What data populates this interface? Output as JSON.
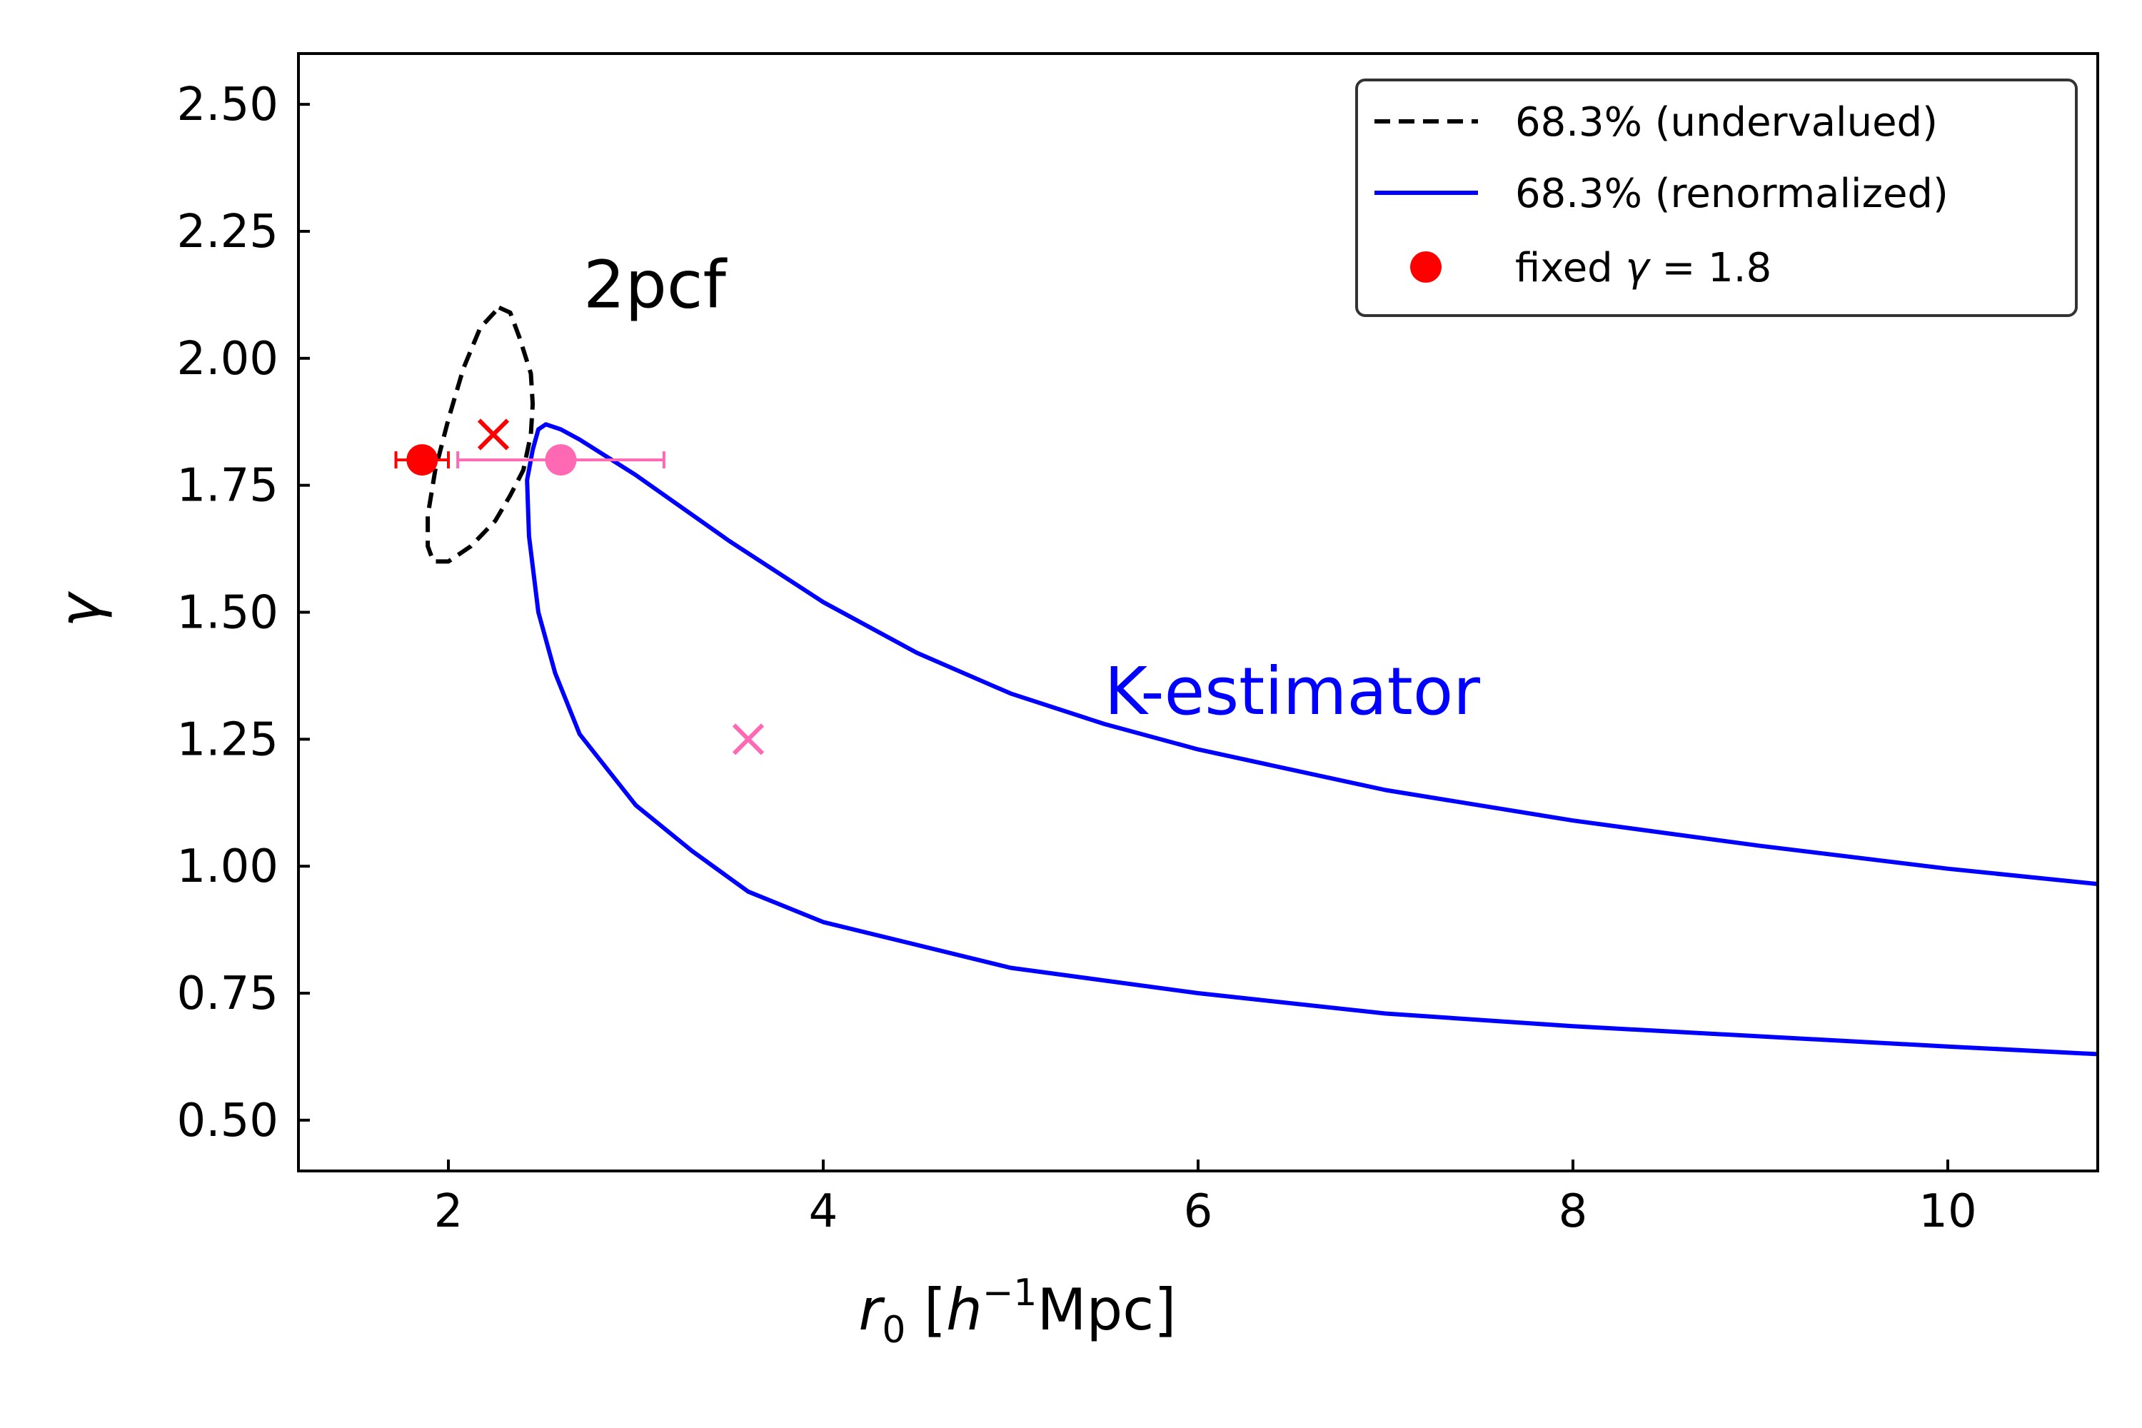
{
  "chart_data": {
    "type": "scatter",
    "title": "",
    "xlabel_parts": {
      "var": "r",
      "sub": "0",
      "unit_open": " [",
      "h": "h",
      "exp": "−1",
      "unit": "Mpc]"
    },
    "ylabel": "γ",
    "xlim": [
      1.2,
      10.8
    ],
    "ylim": [
      0.4,
      2.6
    ],
    "x_ticks": [
      2,
      4,
      6,
      8,
      10
    ],
    "x_tick_labels": [
      "2",
      "4",
      "6",
      "8",
      "10"
    ],
    "y_ticks": [
      0.5,
      0.75,
      1.0,
      1.25,
      1.5,
      1.75,
      2.0,
      2.25,
      2.5
    ],
    "y_tick_labels": [
      "0.50",
      "0.75",
      "1.00",
      "1.25",
      "1.50",
      "1.75",
      "2.00",
      "2.25",
      "2.50"
    ],
    "grid": false,
    "legend": {
      "placement": "top-right",
      "entries": [
        {
          "label": "68.3% (undervalued)",
          "style": "dashed-line",
          "color": "#000000"
        },
        {
          "label": "68.3% (renormalized)",
          "style": "solid-line",
          "color": "#0000ff"
        },
        {
          "label_prefix": "fixed ",
          "label_symbol": "γ",
          "label_suffix": " = 1.8",
          "style": "marker-circle",
          "color": "#ff0000"
        }
      ]
    },
    "annotations": [
      {
        "text": "2pcf",
        "x": 2.72,
        "y": 2.1,
        "color": "#000000"
      },
      {
        "text": "K-estimator",
        "x": 5.5,
        "y": 1.3,
        "color": "#0000ff"
      }
    ],
    "series": [
      {
        "name": "68.3% (undervalued)",
        "type": "contour",
        "line": "dashed",
        "color": "#000000",
        "points": [
          [
            2.27,
            2.1
          ],
          [
            2.33,
            2.09
          ],
          [
            2.38,
            2.04
          ],
          [
            2.44,
            1.97
          ],
          [
            2.45,
            1.91
          ],
          [
            2.44,
            1.85
          ],
          [
            2.4,
            1.78
          ],
          [
            2.33,
            1.73
          ],
          [
            2.25,
            1.68
          ],
          [
            2.12,
            1.63
          ],
          [
            2.0,
            1.6
          ],
          [
            1.92,
            1.6
          ],
          [
            1.89,
            1.63
          ],
          [
            1.89,
            1.69
          ],
          [
            1.93,
            1.78
          ],
          [
            2.0,
            1.88
          ],
          [
            2.08,
            1.98
          ],
          [
            2.17,
            2.06
          ],
          [
            2.27,
            2.1
          ]
        ]
      },
      {
        "name": "68.3% (renormalized)",
        "type": "contour",
        "line": "solid",
        "color": "#0000ff",
        "upper": [
          [
            2.52,
            1.87
          ],
          [
            2.6,
            1.86
          ],
          [
            2.7,
            1.84
          ],
          [
            3.0,
            1.77
          ],
          [
            3.5,
            1.64
          ],
          [
            4.0,
            1.52
          ],
          [
            4.5,
            1.42
          ],
          [
            5.0,
            1.34
          ],
          [
            5.5,
            1.28
          ],
          [
            6.0,
            1.23
          ],
          [
            7.0,
            1.15
          ],
          [
            8.0,
            1.09
          ],
          [
            9.0,
            1.04
          ],
          [
            10.0,
            0.995
          ],
          [
            10.8,
            0.965
          ]
        ],
        "lower": [
          [
            2.52,
            1.87
          ],
          [
            2.48,
            1.86
          ],
          [
            2.45,
            1.82
          ],
          [
            2.42,
            1.76
          ],
          [
            2.43,
            1.65
          ],
          [
            2.48,
            1.5
          ],
          [
            2.57,
            1.38
          ],
          [
            2.7,
            1.26
          ],
          [
            3.0,
            1.12
          ],
          [
            3.3,
            1.03
          ],
          [
            3.6,
            0.95
          ],
          [
            4.0,
            0.89
          ],
          [
            5.0,
            0.8
          ],
          [
            6.0,
            0.75
          ],
          [
            7.0,
            0.71
          ],
          [
            8.0,
            0.685
          ],
          [
            9.0,
            0.665
          ],
          [
            10.0,
            0.645
          ],
          [
            10.8,
            0.63
          ]
        ]
      }
    ],
    "points": [
      {
        "name": "red-point",
        "x": 1.86,
        "y": 1.8,
        "marker": "circle",
        "color": "#ff0000",
        "xerr": [
          0.14,
          0.14
        ]
      },
      {
        "name": "pink-point",
        "x": 2.6,
        "y": 1.8,
        "marker": "circle",
        "color": "#ff69b4",
        "xerr": [
          0.55,
          0.55
        ]
      },
      {
        "name": "red-cross",
        "x": 2.24,
        "y": 1.85,
        "marker": "x",
        "color": "#ff0000"
      },
      {
        "name": "pink-cross",
        "x": 3.6,
        "y": 1.25,
        "marker": "x",
        "color": "#ff69b4"
      }
    ]
  }
}
